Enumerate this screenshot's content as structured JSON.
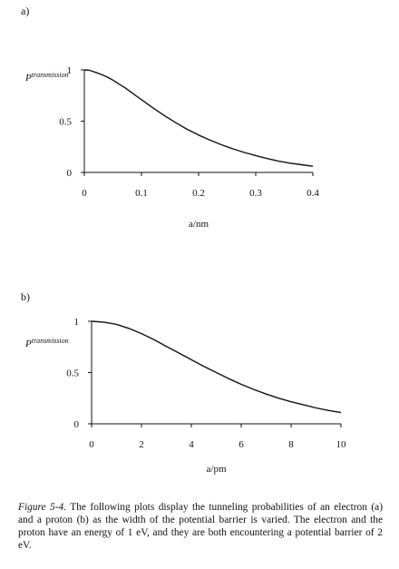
{
  "chart_data": [
    {
      "type": "line",
      "panel_label": "a)",
      "ylabel_prefix": "P",
      "ylabel_sup": "transmission",
      "xlabel": "a/nm",
      "xlim": [
        0,
        0.4
      ],
      "ylim": [
        0,
        1
      ],
      "xticks": [
        0,
        0.1,
        0.2,
        0.3,
        0.4
      ],
      "yticks": [
        0,
        0.5,
        1
      ],
      "x": [
        0,
        0.01,
        0.02,
        0.03,
        0.04,
        0.05,
        0.06,
        0.07,
        0.08,
        0.09,
        0.1,
        0.12,
        0.14,
        0.16,
        0.18,
        0.2,
        0.22,
        0.24,
        0.26,
        0.28,
        0.3,
        0.32,
        0.34,
        0.36,
        0.38,
        0.4
      ],
      "y": [
        1.0,
        0.995,
        0.975,
        0.955,
        0.93,
        0.9,
        0.865,
        0.83,
        0.79,
        0.75,
        0.71,
        0.63,
        0.555,
        0.485,
        0.42,
        0.365,
        0.315,
        0.27,
        0.23,
        0.195,
        0.165,
        0.135,
        0.11,
        0.09,
        0.075,
        0.06
      ]
    },
    {
      "type": "line",
      "panel_label": "b)",
      "ylabel_prefix": "P",
      "ylabel_sup": "transmission",
      "xlabel": "a/pm",
      "xlim": [
        0,
        10
      ],
      "ylim": [
        0,
        1
      ],
      "xticks": [
        0,
        2,
        4,
        6,
        8,
        10
      ],
      "yticks": [
        0,
        0.5,
        1
      ],
      "x": [
        0,
        0.5,
        1,
        1.5,
        2,
        2.5,
        3,
        3.5,
        4,
        4.5,
        5,
        5.5,
        6,
        6.5,
        7,
        7.5,
        8,
        8.5,
        9,
        9.5,
        10
      ],
      "y": [
        1.0,
        0.99,
        0.97,
        0.93,
        0.88,
        0.82,
        0.755,
        0.69,
        0.625,
        0.56,
        0.5,
        0.44,
        0.385,
        0.335,
        0.29,
        0.25,
        0.215,
        0.185,
        0.155,
        0.13,
        0.11
      ]
    }
  ],
  "caption": {
    "figure_ref": "Figure 5-4.",
    "text": " The following plots display the tunneling probabilities of an electron (a) and a proton (b) as the width of the potential barrier is varied. The electron and the proton have an energy of 1 eV, and they are both encountering a potential barrier of 2 eV."
  }
}
